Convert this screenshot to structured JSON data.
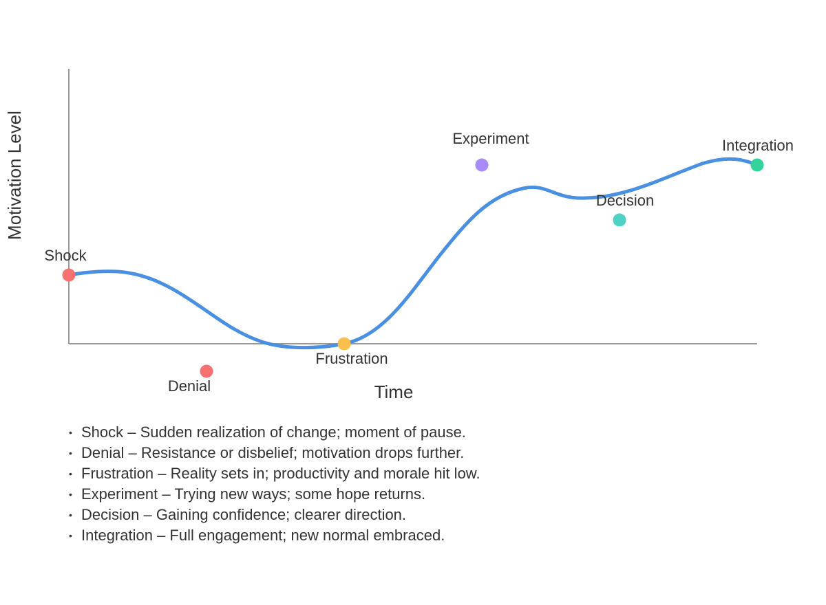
{
  "diagram": {
    "x_axis_title": "Time",
    "y_axis_title": "Motivation Level",
    "colors": {
      "axis": "#999999",
      "curve": "#4a90e2"
    },
    "stages": [
      {
        "label": "Shock",
        "color": "#f87171",
        "label_side": "above"
      },
      {
        "label": "Denial",
        "color": "#f87171",
        "label_side": "below"
      },
      {
        "label": "Frustration",
        "color": "#fbbf4d",
        "label_side": "below"
      },
      {
        "label": "Experiment",
        "color": "#a78bfa",
        "label_side": "above"
      },
      {
        "label": "Decision",
        "color": "#4fd1c5",
        "label_side": "above"
      },
      {
        "label": "Integration",
        "color": "#34d399",
        "label_side": "above"
      }
    ]
  },
  "notes": [
    {
      "bullet": "•",
      "text": "Shock – Sudden realization of change; moment of pause."
    },
    {
      "bullet": "•",
      "text": "Denial – Resistance or disbelief; motivation drops further."
    },
    {
      "bullet": "•",
      "text": "Frustration – Reality sets in; productivity and morale hit low."
    },
    {
      "bullet": "•",
      "text": "Experiment – Trying new ways; some hope returns."
    },
    {
      "bullet": "•",
      "text": "Decision – Gaining confidence; clearer direction."
    },
    {
      "bullet": "•",
      "text": "Integration – Full engagement; new normal embraced."
    }
  ]
}
